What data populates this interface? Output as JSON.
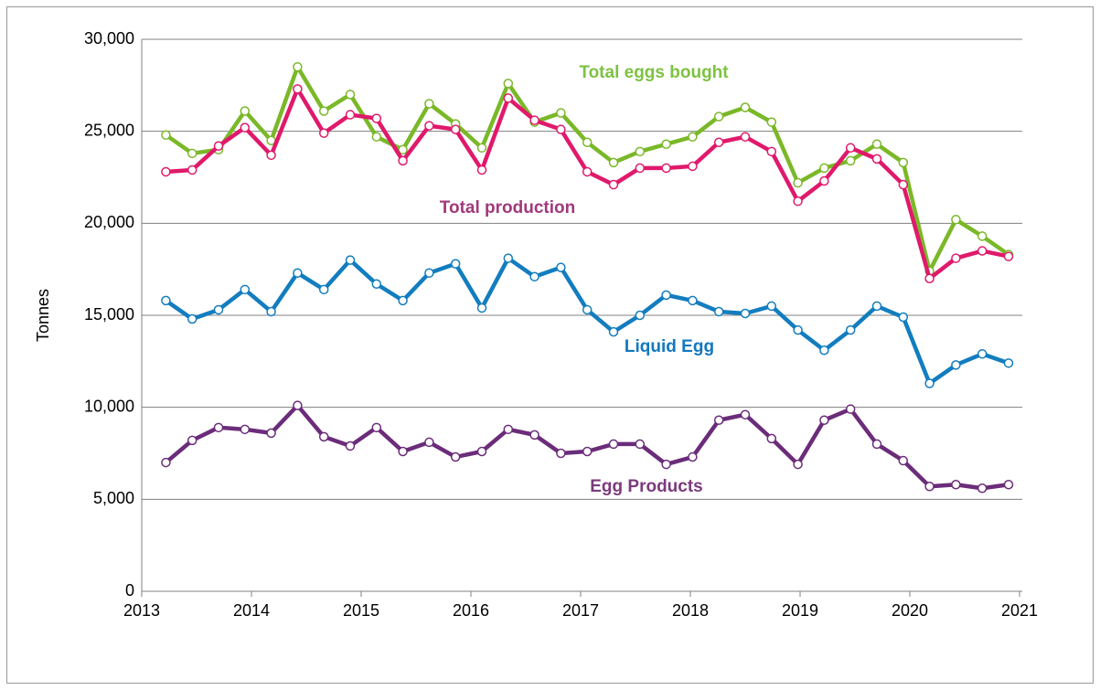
{
  "chart_data": {
    "type": "line",
    "y_label": "Tonnes",
    "x": [
      2013.22,
      2013.46,
      2013.7,
      2013.94,
      2014.18,
      2014.42,
      2014.66,
      2014.9,
      2015.14,
      2015.38,
      2015.62,
      2015.86,
      2016.1,
      2016.34,
      2016.58,
      2016.82,
      2017.06,
      2017.3,
      2017.54,
      2017.78,
      2018.02,
      2018.26,
      2018.5,
      2018.74,
      2018.98,
      2019.22,
      2019.46,
      2019.7,
      2019.94,
      2020.18,
      2020.42,
      2020.66,
      2020.9
    ],
    "xlim": [
      2013,
      2021
    ],
    "xticks": [
      2013,
      2014,
      2015,
      2016,
      2017,
      2018,
      2019,
      2020,
      2021
    ],
    "ylim": [
      0,
      30000
    ],
    "yticks": [
      0,
      {
        "value": 5000,
        "label": "5,000"
      },
      {
        "value": 10000,
        "label": "10,000"
      },
      {
        "value": 15000,
        "label": "15,000"
      },
      {
        "value": 20000,
        "label": "20,000"
      },
      {
        "value": 25000,
        "label": "25,000"
      },
      {
        "value": 30000,
        "label": "30,000"
      }
    ],
    "grid": true,
    "series": [
      {
        "name": "Total eggs bought",
        "color": "#7ab828",
        "label_color": "#7dc241",
        "values": [
          24800,
          23800,
          24000,
          26100,
          24500,
          28500,
          26100,
          27000,
          24700,
          24000,
          26500,
          25400,
          24100,
          27600,
          25500,
          26000,
          24400,
          23300,
          23900,
          24300,
          24700,
          25800,
          26300,
          25500,
          22200,
          23000,
          23400,
          24300,
          23300,
          17400,
          20200,
          19300,
          18300
        ]
      },
      {
        "name": "Total production",
        "color": "#e0196b",
        "label_color": "#a0397c",
        "values": [
          22800,
          22900,
          24200,
          25200,
          23700,
          27300,
          24900,
          25900,
          25700,
          23400,
          25300,
          25100,
          22900,
          26800,
          25600,
          25100,
          22800,
          22100,
          23000,
          23000,
          23100,
          24400,
          24700,
          23900,
          21200,
          22300,
          24100,
          23500,
          22100,
          17000,
          18100,
          18500,
          18200
        ]
      },
      {
        "name": "Liquid Egg",
        "color": "#127dbf",
        "label_color": "#1278bf",
        "values": [
          15800,
          14800,
          15300,
          16400,
          15200,
          17300,
          16400,
          18000,
          16700,
          15800,
          17300,
          17800,
          15400,
          18100,
          17100,
          17600,
          15300,
          14100,
          15000,
          16100,
          15800,
          15200,
          15100,
          15500,
          14200,
          13100,
          14200,
          15500,
          14900,
          11300,
          12300,
          12900,
          12400
        ]
      },
      {
        "name": "Egg Products",
        "color": "#6b2c7a",
        "label_color": "#7b3a7e",
        "values": [
          7000,
          8200,
          8900,
          8800,
          8600,
          10100,
          8400,
          7900,
          8900,
          7600,
          8100,
          7300,
          7600,
          8800,
          8500,
          7500,
          7600,
          8000,
          8000,
          6900,
          7300,
          9300,
          9600,
          8300,
          6900,
          9300,
          9900,
          8000,
          7100,
          5700,
          5800,
          5600,
          5800
        ]
      }
    ]
  }
}
